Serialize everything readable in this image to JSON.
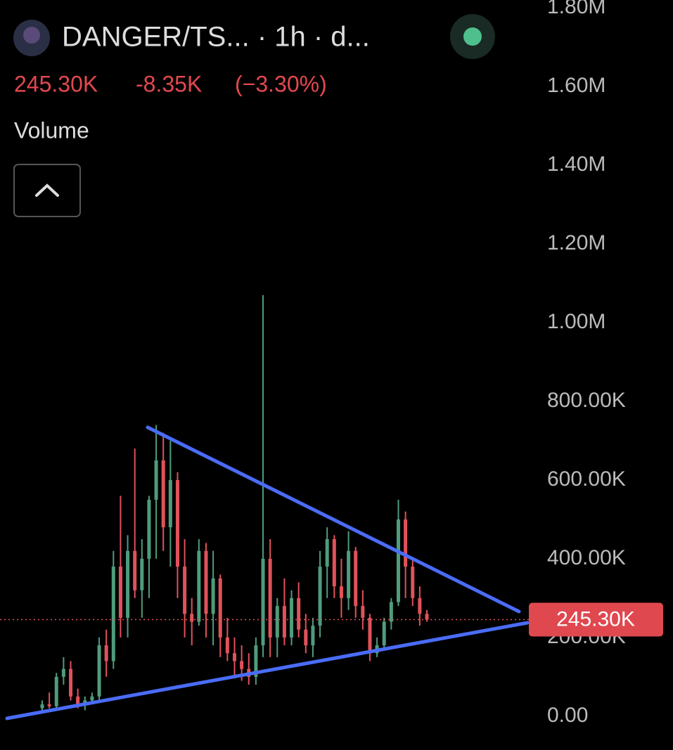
{
  "header": {
    "title": "DANGER/TS...  · 1h · d...",
    "change": "-8.35K",
    "change_pct": "(−3.30%)",
    "indicator": "Volume"
  },
  "chart_data": {
    "type": "candlestick",
    "open": [
      20000,
      30000,
      25000,
      100000,
      120000,
      50000,
      30000,
      40000,
      50000,
      180000,
      140000,
      380000,
      250000,
      420000,
      320000,
      400000,
      550000,
      650000,
      480000,
      600000,
      380000,
      260000,
      240000,
      420000,
      260000,
      350000,
      200000,
      160000,
      140000,
      120000,
      100000,
      180000,
      400000,
      200000,
      280000,
      200000,
      300000,
      220000,
      180000,
      230000,
      380000,
      450000,
      330000,
      300000,
      420000,
      280000,
      250000,
      160000,
      180000,
      240000,
      290000,
      500000,
      380000,
      300000,
      260000
    ],
    "high": [
      40000,
      60000,
      110000,
      150000,
      140000,
      70000,
      50000,
      60000,
      200000,
      220000,
      420000,
      560000,
      460000,
      680000,
      450000,
      560000,
      740000,
      720000,
      700000,
      620000,
      450000,
      300000,
      450000,
      440000,
      420000,
      360000,
      250000,
      200000,
      180000,
      160000,
      200000,
      1070000,
      450000,
      300000,
      350000,
      320000,
      340000,
      260000,
      250000,
      420000,
      480000,
      460000,
      400000,
      470000,
      430000,
      320000,
      260000,
      200000,
      250000,
      300000,
      550000,
      520000,
      400000,
      330000,
      270000
    ],
    "low": [
      10000,
      20000,
      20000,
      80000,
      40000,
      20000,
      15000,
      30000,
      40000,
      100000,
      120000,
      200000,
      200000,
      300000,
      250000,
      300000,
      400000,
      420000,
      380000,
      300000,
      200000,
      180000,
      230000,
      200000,
      180000,
      150000,
      140000,
      100000,
      90000,
      80000,
      80000,
      150000,
      150000,
      150000,
      180000,
      180000,
      200000,
      160000,
      150000,
      200000,
      300000,
      300000,
      250000,
      270000,
      250000,
      220000,
      140000,
      150000,
      170000,
      220000,
      280000,
      300000,
      280000,
      230000,
      240000
    ],
    "close": [
      30000,
      25000,
      100000,
      120000,
      50000,
      30000,
      40000,
      50000,
      180000,
      140000,
      380000,
      250000,
      420000,
      320000,
      400000,
      550000,
      650000,
      480000,
      600000,
      380000,
      260000,
      240000,
      420000,
      260000,
      350000,
      200000,
      160000,
      140000,
      120000,
      100000,
      180000,
      400000,
      200000,
      280000,
      200000,
      300000,
      220000,
      180000,
      230000,
      380000,
      450000,
      330000,
      300000,
      420000,
      280000,
      250000,
      160000,
      180000,
      240000,
      290000,
      500000,
      380000,
      300000,
      260000,
      245300
    ],
    "up_color": "#4f9c7d",
    "down_color": "#e0525a",
    "ylim": [
      -86000,
      1820000
    ],
    "yticks": [
      {
        "value": 0,
        "label": "0.00"
      },
      {
        "value": 200000,
        "label": "200.00K"
      },
      {
        "value": 400000,
        "label": "400.00K"
      },
      {
        "value": 600000,
        "label": "600.00K"
      },
      {
        "value": 800000,
        "label": "800.00K"
      },
      {
        "value": 1000000,
        "label": "1.00M"
      },
      {
        "value": 1200000,
        "label": "1.20M"
      },
      {
        "value": 1400000,
        "label": "1.40M"
      },
      {
        "value": 1600000,
        "label": "1.60M"
      },
      {
        "value": 1800000,
        "label": "1.80M"
      }
    ],
    "last_price": {
      "value": 245300,
      "label": "245.30K"
    }
  }
}
